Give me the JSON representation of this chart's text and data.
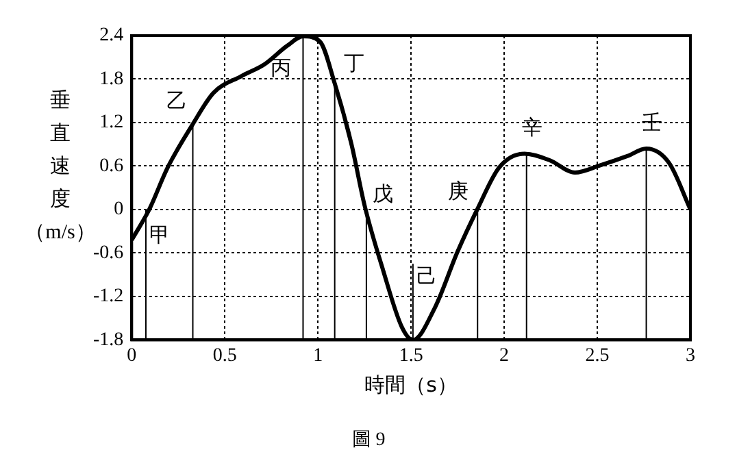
{
  "chart_data": {
    "type": "line",
    "xlabel": "時間（s）",
    "ylabel": "垂直速度（m/s）",
    "x": [
      0,
      0.094,
      0.193,
      0.326,
      0.439,
      0.588,
      0.711,
      0.835,
      0.921,
      1.01,
      1.09,
      1.18,
      1.25,
      1.35,
      1.45,
      1.51,
      1.627,
      1.75,
      1.857,
      1.973,
      2.109,
      2.244,
      2.38,
      2.516,
      2.664,
      2.763,
      2.886,
      3
    ],
    "series": [
      {
        "color": "#000000",
        "values": [
          -0.42,
          0,
          0.58,
          1.17,
          1.61,
          1.84,
          2.0,
          2.26,
          2.39,
          2.32,
          1.74,
          0.9,
          0.06,
          -0.84,
          -1.62,
          -1.8,
          -1.36,
          -0.58,
          0.01,
          0.58,
          0.77,
          0.68,
          0.51,
          0.61,
          0.74,
          0.84,
          0.64,
          0
        ]
      },
      {
        "type": "line",
        "color": "#000000",
        "x": [
          0.076,
          0.076
        ],
        "values": [
          -1.8,
          0.01
        ]
      },
      {
        "type": "line",
        "color": "#000000",
        "x": [
          0.328,
          0.328
        ],
        "values": [
          -1.8,
          1.18
        ]
      },
      {
        "type": "line",
        "color": "#000000",
        "x": [
          0.92,
          0.92
        ],
        "values": [
          -1.8,
          2.39
        ]
      },
      {
        "type": "line",
        "color": "#000000",
        "x": [
          1.09,
          1.09
        ],
        "values": [
          -1.8,
          1.74
        ]
      },
      {
        "type": "line",
        "color": "#000000",
        "x": [
          1.26,
          1.26
        ],
        "values": [
          -1.8,
          0.01
        ]
      },
      {
        "type": "line",
        "color": "#000000",
        "x": [
          1.51,
          1.51
        ],
        "values": [
          -1.8,
          -0.75
        ]
      },
      {
        "type": "line",
        "color": "#000000",
        "x": [
          1.857,
          1.857
        ],
        "values": [
          -1.8,
          0.01
        ]
      },
      {
        "type": "line",
        "color": "#000000",
        "x": [
          2.12,
          2.12
        ],
        "values": [
          -1.8,
          0.77
        ]
      },
      {
        "type": "line",
        "color": "#000000",
        "x": [
          2.763,
          2.763
        ],
        "values": [
          -1.8,
          0.84
        ]
      }
    ],
    "xlim": [
      0,
      3
    ],
    "xticks": [
      0,
      0.5,
      1,
      1.5,
      2,
      2.5,
      3
    ],
    "ylim": [
      -1.8,
      2.4
    ],
    "yticks": [
      -1.8,
      -1.2,
      -0.6,
      0,
      0.6,
      1.2,
      1.8,
      2.4
    ],
    "grid": true,
    "marker": "none",
    "line_style": "solid",
    "annotations": [
      {
        "text": "甲",
        "x": 0.076,
        "y": 0.01
      },
      {
        "text": "乙",
        "x": 0.328,
        "y": 1.18
      },
      {
        "text": "丙",
        "x": 0.92,
        "y": 2.39
      },
      {
        "text": "丁",
        "x": 1.09,
        "y": 1.74
      },
      {
        "text": "戊",
        "x": 1.26,
        "y": 0.01
      },
      {
        "text": "己",
        "x": 1.51,
        "y": -0.75
      },
      {
        "text": "庚",
        "x": 1.857,
        "y": 0.01
      },
      {
        "text": "辛",
        "x": 2.12,
        "y": 0.77
      },
      {
        "text": "壬",
        "x": 2.763,
        "y": 0.84
      },
      "圖 9"
    ]
  }
}
